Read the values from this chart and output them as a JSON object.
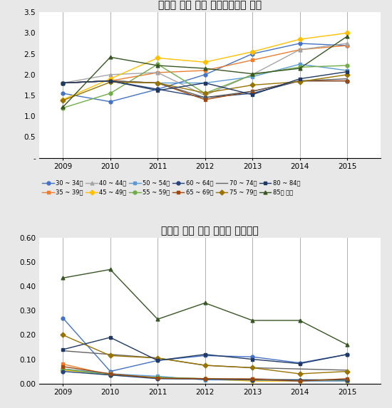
{
  "years": [
    2009,
    2010,
    2011,
    2012,
    2013,
    2014,
    2015
  ],
  "title1": "자궁암 검진 결과 상피세포이상 판정",
  "title2": "자궁암 검진 결과 자궁암 의심판정",
  "series_labels": [
    "30 ~ 34세",
    "35 ~ 39세",
    "40 ~ 44세",
    "45 ~ 49세",
    "50 ~ 54세",
    "55 ~ 59세",
    "60 ~ 64세",
    "65 ~ 69세",
    "70 ~ 74세",
    "75 ~ 79세",
    "80 ~ 84세",
    "85세 이상"
  ],
  "colors": [
    "#4472C4",
    "#ED7D31",
    "#A5A5A5",
    "#FFC000",
    "#5B9BD5",
    "#70AD47",
    "#264478",
    "#9E480E",
    "#636363",
    "#997300",
    "#1F3864",
    "#375623"
  ],
  "markers": [
    "o",
    "s",
    "^",
    "D",
    "s",
    "o",
    "o",
    "s",
    "",
    "D",
    "s",
    "^"
  ],
  "chart1_data": [
    [
      1.55,
      1.35,
      1.65,
      2.0,
      2.5,
      2.75,
      2.7
    ],
    [
      1.8,
      1.85,
      2.05,
      2.1,
      2.35,
      2.6,
      2.7
    ],
    [
      1.8,
      2.0,
      2.05,
      1.5,
      2.0,
      2.6,
      2.75
    ],
    [
      1.4,
      1.9,
      2.4,
      2.3,
      2.55,
      2.85,
      3.0
    ],
    [
      1.8,
      1.85,
      1.8,
      1.8,
      1.95,
      2.25,
      2.1
    ],
    [
      1.2,
      1.55,
      2.25,
      1.55,
      2.0,
      2.18,
      2.22
    ],
    [
      1.8,
      1.85,
      1.65,
      1.45,
      1.55,
      1.85,
      1.85
    ],
    [
      1.8,
      1.85,
      1.8,
      1.4,
      1.6,
      1.85,
      1.85
    ],
    [
      1.8,
      1.85,
      1.8,
      1.45,
      1.6,
      1.85,
      1.9
    ],
    [
      1.38,
      1.82,
      1.8,
      1.56,
      1.75,
      1.83,
      2.0
    ],
    [
      1.8,
      1.85,
      1.62,
      1.8,
      1.52,
      1.9,
      2.07
    ],
    [
      1.22,
      2.42,
      2.22,
      2.15,
      2.02,
      2.15,
      2.92
    ]
  ],
  "chart2_data": [
    [
      0.27,
      0.05,
      0.095,
      0.115,
      0.11,
      0.085,
      0.12
    ],
    [
      0.08,
      0.035,
      0.025,
      0.02,
      0.02,
      0.01,
      0.015
    ],
    [
      0.06,
      0.04,
      0.025,
      0.02,
      0.02,
      0.015,
      0.01
    ],
    [
      0.055,
      0.04,
      0.022,
      0.018,
      0.01,
      0.01,
      0.01
    ],
    [
      0.06,
      0.04,
      0.03,
      0.015,
      0.015,
      0.01,
      0.01
    ],
    [
      0.06,
      0.035,
      0.025,
      0.02,
      0.015,
      0.015,
      0.015
    ],
    [
      0.05,
      0.035,
      0.02,
      0.018,
      0.015,
      0.015,
      0.015
    ],
    [
      0.07,
      0.04,
      0.022,
      0.02,
      0.018,
      0.01,
      0.02
    ],
    [
      0.135,
      0.12,
      0.105,
      0.075,
      0.065,
      0.06,
      0.055
    ],
    [
      0.2,
      0.115,
      0.105,
      0.075,
      0.065,
      0.04,
      0.05
    ],
    [
      0.14,
      0.19,
      0.095,
      0.12,
      0.1,
      0.082,
      0.12
    ],
    [
      0.435,
      0.47,
      0.265,
      0.332,
      0.26,
      0.26,
      0.16
    ]
  ],
  "ylim1": [
    0,
    3.5
  ],
  "ylim2": [
    0,
    0.6
  ],
  "yticks1": [
    0.0,
    0.5,
    1.0,
    1.5,
    2.0,
    2.5,
    3.0,
    3.5
  ],
  "yticks2": [
    0.0,
    0.1,
    0.2,
    0.3,
    0.4,
    0.5,
    0.6
  ],
  "bg_color": "#e8e8e8",
  "plot_bg_color": "#ffffff"
}
